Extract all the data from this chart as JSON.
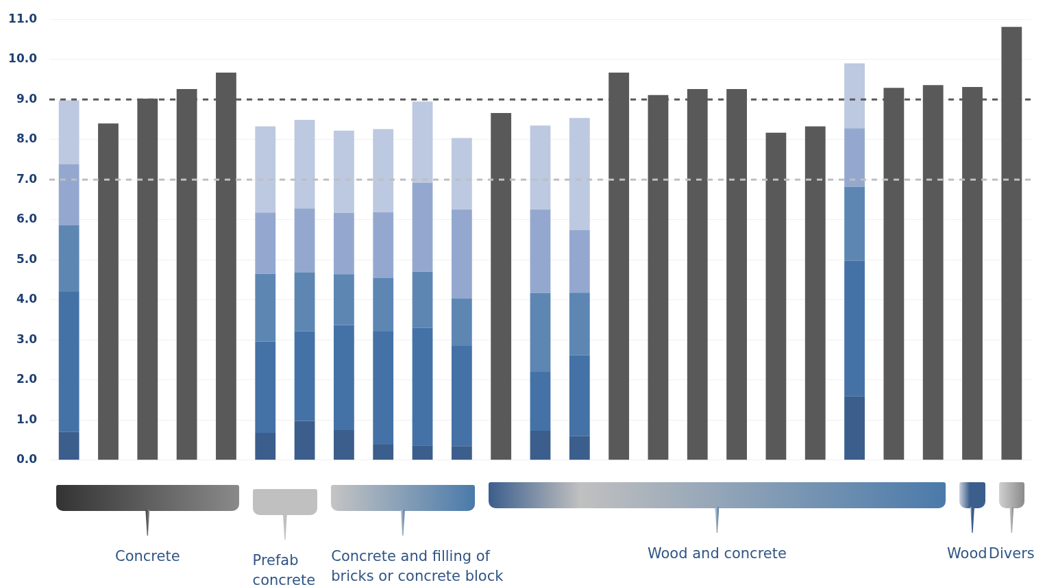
{
  "chart_data": {
    "type": "bar",
    "stacked": true,
    "categories": [
      null,
      null,
      null,
      null,
      null,
      null,
      null,
      null,
      null,
      null,
      null,
      null,
      null,
      null,
      null,
      null,
      null,
      null,
      null,
      null,
      null,
      null,
      null,
      null,
      null
    ],
    "series": [
      {
        "color": "#3b5e8c",
        "values": [
          0.7,
          null,
          null,
          null,
          null,
          0.68,
          0.98,
          0.75,
          0.39,
          0.37,
          0.35,
          null,
          0.73,
          0.6,
          null,
          null,
          null,
          null,
          null,
          null,
          1.59,
          null,
          null,
          null,
          null
        ]
      },
      {
        "color": "#4472a6",
        "values": [
          3.5,
          null,
          null,
          null,
          null,
          2.28,
          2.24,
          2.62,
          2.82,
          2.93,
          2.5,
          null,
          1.47,
          2.02,
          null,
          null,
          null,
          null,
          null,
          null,
          3.39,
          null,
          null,
          null,
          null
        ]
      },
      {
        "color": "#5d86b3",
        "values": [
          1.66,
          null,
          null,
          null,
          null,
          1.69,
          1.47,
          1.27,
          1.34,
          1.4,
          1.19,
          null,
          1.97,
          1.56,
          null,
          null,
          null,
          null,
          null,
          null,
          1.84,
          null,
          null,
          null,
          null
        ]
      },
      {
        "color": "#94a8cf",
        "values": [
          1.53,
          null,
          null,
          null,
          null,
          1.53,
          1.59,
          1.53,
          1.64,
          2.22,
          2.21,
          null,
          2.08,
          1.56,
          null,
          null,
          null,
          null,
          null,
          null,
          1.46,
          null,
          null,
          null,
          null
        ]
      },
      {
        "color": "#bcc9e0",
        "values": [
          1.59,
          null,
          null,
          null,
          null,
          2.15,
          2.21,
          2.05,
          2.07,
          2.03,
          1.79,
          null,
          2.1,
          2.8,
          null,
          null,
          null,
          null,
          null,
          null,
          1.62,
          null,
          null,
          null,
          null
        ]
      },
      {
        "color": "#595959",
        "values": [
          null,
          8.4,
          9.02,
          9.26,
          9.67,
          null,
          null,
          null,
          null,
          null,
          null,
          8.66,
          null,
          null,
          9.67,
          9.11,
          9.26,
          9.26,
          8.17,
          8.33,
          null,
          9.29,
          9.36,
          9.31,
          10.81
        ]
      }
    ],
    "ylim": [
      0,
      11
    ],
    "yticks": [
      {
        "value": 0,
        "label": "0.0"
      },
      {
        "value": 1,
        "label": "1.0"
      },
      {
        "value": 2,
        "label": "2.0"
      },
      {
        "value": 3,
        "label": "3.0"
      },
      {
        "value": 4,
        "label": "4.0"
      },
      {
        "value": 5,
        "label": "5.0"
      },
      {
        "value": 6,
        "label": "6.0"
      },
      {
        "value": 7,
        "label": "7.0"
      },
      {
        "value": 8,
        "label": "8.0"
      },
      {
        "value": 9,
        "label": "9.0"
      },
      {
        "value": 10,
        "label": "10.0"
      },
      {
        "value": 11,
        "label": "11.0"
      }
    ],
    "grid": "y",
    "legend": false,
    "ref_lines": [
      {
        "axis": "y",
        "value": 9,
        "color": "#595959",
        "line_style": "dashed"
      },
      {
        "axis": "y",
        "value": 7,
        "color": "#bfbfbf",
        "line_style": "dashed"
      }
    ],
    "annotations": [
      "Concrete",
      "Prefab concrete",
      "Concrete and filling of bricks or concrete block",
      "Wood and concrete",
      "Wood",
      "Divers"
    ]
  }
}
